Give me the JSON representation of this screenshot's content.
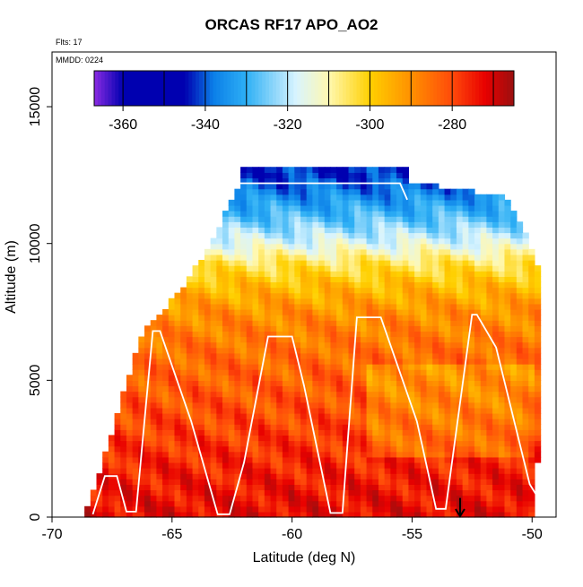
{
  "chart_data": {
    "type": "heatmap",
    "title": "ORCAS RF17 APO_AO2",
    "flights_label": "Flts: 17",
    "date_label": "MMDD: 0224",
    "xlabel": "Latitude (deg N)",
    "ylabel": "Altitude (m)",
    "xlim": [
      -70,
      -49
    ],
    "ylim": [
      0,
      17000
    ],
    "xticks": [
      -70,
      -65,
      -60,
      -55,
      -50
    ],
    "xtick_labels": [
      "-70",
      "-65",
      "-60",
      "-55",
      "-50"
    ],
    "yticks": [
      0,
      5000,
      10000,
      15000
    ],
    "ytick_labels": [
      "0",
      "5000",
      "10000",
      "15000"
    ],
    "colorbar": {
      "range": [
        -367,
        -265
      ],
      "ticks": [
        -360,
        -340,
        -320,
        -300,
        -280
      ],
      "tick_labels": [
        "-360",
        "-340",
        "-320",
        "-300",
        "-280"
      ],
      "bin_width": 10
    },
    "colors": {
      "c_min": "#8a2be2",
      "c_deep_blue": "#0000b0",
      "c_blue": "#0b7fe8",
      "c_sky": "#2eb0f5",
      "c_light": "#d8f4ff",
      "c_cream": "#fff8b0",
      "c_yellow": "#ffd000",
      "c_orange": "#ff9000",
      "c_red_orange": "#ff4a0a",
      "c_red": "#e80000",
      "c_dark_red": "#9a1010"
    },
    "flight_track": [
      [
        -68.3,
        100
      ],
      [
        -67.8,
        1500
      ],
      [
        -67.3,
        1500
      ],
      [
        -66.9,
        200
      ],
      [
        -66.5,
        200
      ],
      [
        -65.8,
        6800
      ],
      [
        -65.5,
        6800
      ],
      [
        -64.2,
        3500
      ],
      [
        -63.1,
        100
      ],
      [
        -62.6,
        100
      ],
      [
        -62.0,
        2000
      ],
      [
        -61.0,
        6600
      ],
      [
        -60.0,
        6600
      ],
      [
        -59.5,
        4800
      ],
      [
        -58.4,
        150
      ],
      [
        -57.9,
        150
      ],
      [
        -57.3,
        7300
      ],
      [
        -56.3,
        7300
      ],
      [
        -54.8,
        3500
      ],
      [
        -54.0,
        300
      ],
      [
        -53.6,
        300
      ],
      [
        -52.5,
        7400
      ],
      [
        -52.3,
        7400
      ],
      [
        -51.5,
        6200
      ],
      [
        -50.1,
        1200
      ],
      [
        -49.6,
        500
      ]
    ],
    "upper_track": [
      [
        -62.3,
        12200
      ],
      [
        -59.5,
        12200
      ],
      [
        -55.5,
        12200
      ],
      [
        -55.2,
        11600
      ]
    ],
    "marker": {
      "type": "arrow",
      "latitude": -53.0,
      "altitude_top": 700
    },
    "heatmap_profile": [
      {
        "altitude": 0,
        "value": -272
      },
      {
        "altitude": 2000,
        "value": -276
      },
      {
        "altitude": 4000,
        "value": -281
      },
      {
        "altitude": 6000,
        "value": -285
      },
      {
        "altitude": 7500,
        "value": -290
      },
      {
        "altitude": 8500,
        "value": -297
      },
      {
        "altitude": 9300,
        "value": -305
      },
      {
        "altitude": 10000,
        "value": -316
      },
      {
        "altitude": 11000,
        "value": -328
      },
      {
        "altitude": 12500,
        "value": -343
      }
    ],
    "heatmap_extent": {
      "lat_range": [
        -68.9,
        -49.5
      ],
      "altitude_max": 12800,
      "lat_step": 0.25,
      "alt_step": 200
    }
  }
}
